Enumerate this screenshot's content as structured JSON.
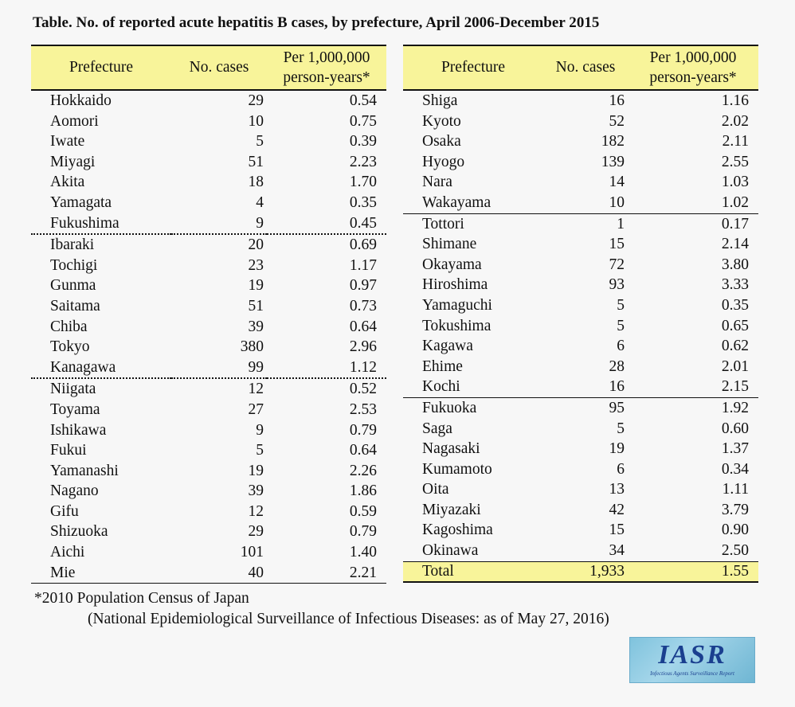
{
  "title": "Table. No. of reported acute hepatitis B cases, by prefecture, April 2006-December 2015",
  "columns": {
    "prefecture": "Prefecture",
    "cases": "No. cases",
    "rate_line1": "Per 1,000,000",
    "rate_line2": "person-years*"
  },
  "left_rows": [
    {
      "name": "Hokkaido",
      "cases": "29",
      "rate": "0.54"
    },
    {
      "name": "Aomori",
      "cases": "10",
      "rate": "0.75"
    },
    {
      "name": "Iwate",
      "cases": "5",
      "rate": "0.39"
    },
    {
      "name": "Miyagi",
      "cases": "51",
      "rate": "2.23"
    },
    {
      "name": "Akita",
      "cases": "18",
      "rate": "1.70"
    },
    {
      "name": "Yamagata",
      "cases": "4",
      "rate": "0.35"
    },
    {
      "name": "Fukushima",
      "cases": "9",
      "rate": "0.45"
    },
    {
      "name": "Ibaraki",
      "cases": "20",
      "rate": "0.69"
    },
    {
      "name": "Tochigi",
      "cases": "23",
      "rate": "1.17"
    },
    {
      "name": "Gunma",
      "cases": "19",
      "rate": "0.97"
    },
    {
      "name": "Saitama",
      "cases": "51",
      "rate": "0.73"
    },
    {
      "name": "Chiba",
      "cases": "39",
      "rate": "0.64"
    },
    {
      "name": "Tokyo",
      "cases": "380",
      "rate": "2.96"
    },
    {
      "name": "Kanagawa",
      "cases": "99",
      "rate": "1.12"
    },
    {
      "name": "Niigata",
      "cases": "12",
      "rate": "0.52"
    },
    {
      "name": "Toyama",
      "cases": "27",
      "rate": "2.53"
    },
    {
      "name": "Ishikawa",
      "cases": "9",
      "rate": "0.79"
    },
    {
      "name": "Fukui",
      "cases": "5",
      "rate": "0.64"
    },
    {
      "name": "Yamanashi",
      "cases": "19",
      "rate": "2.26"
    },
    {
      "name": "Nagano",
      "cases": "39",
      "rate": "1.86"
    },
    {
      "name": "Gifu",
      "cases": "12",
      "rate": "0.59"
    },
    {
      "name": "Shizuoka",
      "cases": "29",
      "rate": "0.79"
    },
    {
      "name": "Aichi",
      "cases": "101",
      "rate": "1.40"
    },
    {
      "name": "Mie",
      "cases": "40",
      "rate": "2.21"
    }
  ],
  "right_rows": [
    {
      "name": "Shiga",
      "cases": "16",
      "rate": "1.16"
    },
    {
      "name": "Kyoto",
      "cases": "52",
      "rate": "2.02"
    },
    {
      "name": "Osaka",
      "cases": "182",
      "rate": "2.11"
    },
    {
      "name": "Hyogo",
      "cases": "139",
      "rate": "2.55"
    },
    {
      "name": "Nara",
      "cases": "14",
      "rate": "1.03"
    },
    {
      "name": "Wakayama",
      "cases": "10",
      "rate": "1.02"
    },
    {
      "name": "Tottori",
      "cases": "1",
      "rate": "0.17"
    },
    {
      "name": "Shimane",
      "cases": "15",
      "rate": "2.14"
    },
    {
      "name": "Okayama",
      "cases": "72",
      "rate": "3.80"
    },
    {
      "name": "Hiroshima",
      "cases": "93",
      "rate": "3.33"
    },
    {
      "name": "Yamaguchi",
      "cases": "5",
      "rate": "0.35"
    },
    {
      "name": "Tokushima",
      "cases": "5",
      "rate": "0.65"
    },
    {
      "name": "Kagawa",
      "cases": "6",
      "rate": "0.62"
    },
    {
      "name": "Ehime",
      "cases": "28",
      "rate": "2.01"
    },
    {
      "name": "Kochi",
      "cases": "16",
      "rate": "2.15"
    },
    {
      "name": "Fukuoka",
      "cases": "95",
      "rate": "1.92"
    },
    {
      "name": "Saga",
      "cases": "5",
      "rate": "0.60"
    },
    {
      "name": "Nagasaki",
      "cases": "19",
      "rate": "1.37"
    },
    {
      "name": "Kumamoto",
      "cases": "6",
      "rate": "0.34"
    },
    {
      "name": "Oita",
      "cases": "13",
      "rate": "1.11"
    },
    {
      "name": "Miyazaki",
      "cases": "42",
      "rate": "3.79"
    },
    {
      "name": "Kagoshima",
      "cases": "15",
      "rate": "0.90"
    },
    {
      "name": "Okinawa",
      "cases": "34",
      "rate": "2.50"
    }
  ],
  "total": {
    "name": "Total",
    "cases": "1,933",
    "rate": "1.55"
  },
  "footnote": "*2010 Population Census of Japan",
  "source": "(National Epidemiological Surveillance of Infectious Diseases: as of May 27, 2016)",
  "logo": {
    "main": "IASR",
    "sub": "Infectious Agents Surveillance Report"
  }
}
